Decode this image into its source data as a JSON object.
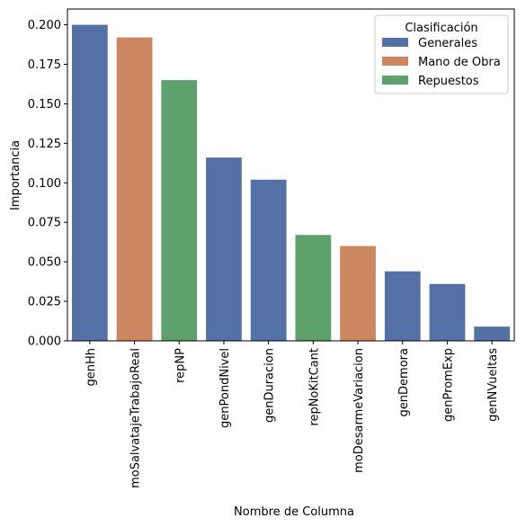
{
  "chart_data": {
    "type": "bar",
    "xlabel": "Nombre de Columna",
    "ylabel": "Importancia",
    "ylim": [
      0,
      0.21
    ],
    "yticks": [
      "0.000",
      "0.025",
      "0.050",
      "0.075",
      "0.100",
      "0.125",
      "0.150",
      "0.175",
      "0.200"
    ],
    "grid": false,
    "legend": {
      "title": "Clasificación",
      "placement": "top-right",
      "entries": [
        {
          "name": "Generales",
          "color": "#5471a6"
        },
        {
          "name": "Mano de Obra",
          "color": "#cc8760"
        },
        {
          "name": "Repuestos",
          "color": "#5fa16c"
        }
      ]
    },
    "categories": [
      "genHh",
      "moSalvatajeTrabajoReal",
      "repNP",
      "genPondNivel",
      "genDuracion",
      "repNoKitCant",
      "moDesarmeVariacion",
      "genDemora",
      "genPromExp",
      "genNVueltas"
    ],
    "values": [
      0.2,
      0.192,
      0.165,
      0.116,
      0.102,
      0.067,
      0.06,
      0.044,
      0.036,
      0.009
    ],
    "classes": [
      "Generales",
      "Mano de Obra",
      "Repuestos",
      "Generales",
      "Generales",
      "Repuestos",
      "Mano de Obra",
      "Generales",
      "Generales",
      "Generales"
    ]
  }
}
